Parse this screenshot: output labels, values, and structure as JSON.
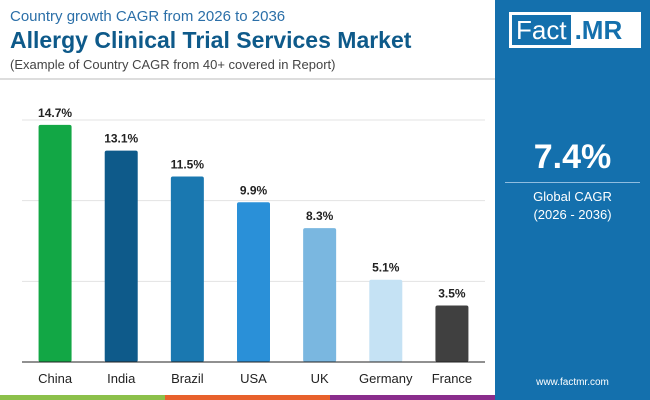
{
  "header": {
    "subtitle": "Country growth CAGR from 2026 to 2036",
    "title": "Allergy Clinical Trial Services Market",
    "note": "(Example of Country CAGR from 40+ covered in Report)"
  },
  "panel": {
    "logo_left": "Fact",
    "logo_right": ".MR",
    "value": "7.4%",
    "label": "Global CAGR",
    "period": "(2026 - 2036)",
    "url": "www.factmr.com"
  },
  "chart_data": {
    "type": "bar",
    "categories": [
      "China",
      "India",
      "Brazil",
      "USA",
      "UK",
      "Germany",
      "France"
    ],
    "values": [
      14.7,
      13.1,
      11.5,
      9.9,
      8.3,
      5.1,
      3.5
    ],
    "labels": [
      "14.7%",
      "13.1%",
      "11.5%",
      "9.9%",
      "8.3%",
      "5.1%",
      "3.5%"
    ],
    "colors": [
      "#12a745",
      "#0e5a8a",
      "#1a78b0",
      "#2a90d8",
      "#7ab7e0",
      "#c5e2f4",
      "#404040"
    ],
    "ylim": [
      0,
      15
    ],
    "gridlines": [
      5,
      10,
      15
    ],
    "grid": true
  },
  "colors": {
    "brand": "#1470ad",
    "strip": [
      "#8cc04a",
      "#e8612c",
      "#8a2d8c"
    ]
  }
}
